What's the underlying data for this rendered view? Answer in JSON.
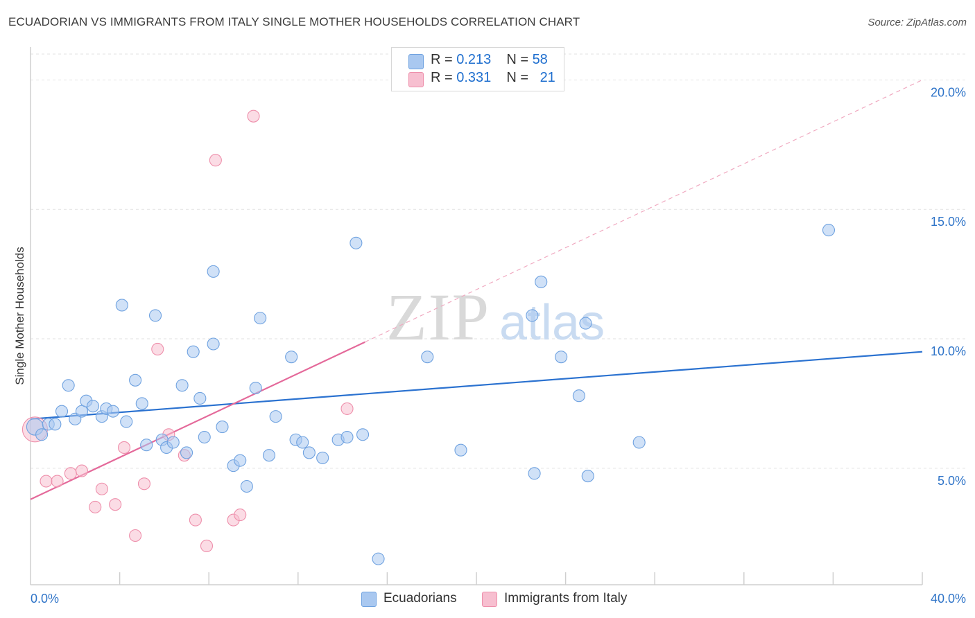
{
  "header": {
    "title": "ECUADORIAN VS IMMIGRANTS FROM ITALY SINGLE MOTHER HOUSEHOLDS CORRELATION CHART",
    "source": "Source: ZipAtlas.com"
  },
  "watermark": {
    "zip": "ZIP",
    "atlas": "atlas"
  },
  "legend_top": {
    "rows": [
      {
        "r_label": "R = ",
        "r_value": "0.213",
        "n_label": "N = ",
        "n_value": "58",
        "color": "#a9c8f0",
        "border": "#6fa2e0"
      },
      {
        "r_label": "R = ",
        "r_value": "0.331",
        "n_label": "N = ",
        "n_value": "21",
        "color": "#f7bfd0",
        "border": "#ee8fab"
      }
    ]
  },
  "legend_bottom": {
    "items": [
      {
        "label": "Ecuadorians",
        "color": "#a9c8f0",
        "border": "#6fa2e0"
      },
      {
        "label": "Immigrants from Italy",
        "color": "#f7bfd0",
        "border": "#ee8fab"
      }
    ]
  },
  "chart_data": {
    "type": "scatter",
    "title": "ECUADORIAN VS IMMIGRANTS FROM ITALY SINGLE MOTHER HOUSEHOLDS CORRELATION CHART",
    "xlabel": "",
    "ylabel": "Single Mother Households",
    "xlim": [
      0,
      40
    ],
    "ylim": [
      0.5,
      21
    ],
    "x_tick_labels": [
      {
        "value": 0,
        "label": "0.0%"
      },
      {
        "value": 40,
        "label": "40.0%"
      }
    ],
    "x_minor_ticks": [
      4,
      8,
      12,
      16,
      20,
      24,
      28,
      32,
      36,
      40
    ],
    "y_ticks": [
      {
        "value": 5,
        "label": "5.0%"
      },
      {
        "value": 10,
        "label": "10.0%"
      },
      {
        "value": 15,
        "label": "15.0%"
      },
      {
        "value": 20,
        "label": "20.0%"
      }
    ],
    "grid": true,
    "series": [
      {
        "name": "Ecuadorians",
        "color": "#a9c8f0",
        "stroke": "#6fa2e0",
        "r": 0.213,
        "n": 58,
        "trend": {
          "x0": 0,
          "y0": 6.9,
          "x1": 40,
          "y1": 9.5,
          "dashed_from": null
        },
        "points": [
          [
            0.2,
            6.6
          ],
          [
            0.5,
            6.3
          ],
          [
            0.8,
            6.7
          ],
          [
            1.1,
            6.7
          ],
          [
            1.4,
            7.2
          ],
          [
            1.7,
            8.2
          ],
          [
            2.0,
            6.9
          ],
          [
            2.3,
            7.2
          ],
          [
            2.5,
            7.6
          ],
          [
            2.8,
            7.4
          ],
          [
            3.2,
            7.0
          ],
          [
            3.4,
            7.3
          ],
          [
            3.7,
            7.2
          ],
          [
            4.1,
            11.3
          ],
          [
            4.3,
            6.8
          ],
          [
            4.7,
            8.4
          ],
          [
            5.0,
            7.5
          ],
          [
            5.2,
            5.9
          ],
          [
            5.6,
            10.9
          ],
          [
            5.9,
            6.1
          ],
          [
            6.1,
            5.8
          ],
          [
            6.4,
            6.0
          ],
          [
            6.8,
            8.2
          ],
          [
            7.0,
            5.6
          ],
          [
            7.3,
            9.5
          ],
          [
            7.6,
            7.7
          ],
          [
            7.8,
            6.2
          ],
          [
            8.2,
            12.6
          ],
          [
            8.2,
            9.8
          ],
          [
            8.6,
            6.6
          ],
          [
            9.1,
            5.1
          ],
          [
            9.4,
            5.3
          ],
          [
            9.7,
            4.3
          ],
          [
            10.1,
            8.1
          ],
          [
            10.3,
            10.8
          ],
          [
            10.7,
            5.5
          ],
          [
            11.0,
            7.0
          ],
          [
            11.7,
            9.3
          ],
          [
            11.9,
            6.1
          ],
          [
            12.2,
            6.0
          ],
          [
            12.5,
            5.6
          ],
          [
            13.1,
            5.4
          ],
          [
            13.8,
            6.1
          ],
          [
            14.2,
            6.2
          ],
          [
            14.6,
            13.7
          ],
          [
            14.9,
            6.3
          ],
          [
            15.6,
            1.5
          ],
          [
            17.8,
            9.3
          ],
          [
            19.3,
            5.7
          ],
          [
            22.5,
            10.9
          ],
          [
            22.6,
            4.8
          ],
          [
            22.9,
            12.2
          ],
          [
            23.8,
            9.3
          ],
          [
            24.6,
            7.8
          ],
          [
            24.9,
            10.6
          ],
          [
            25.0,
            4.7
          ],
          [
            27.3,
            6.0
          ],
          [
            35.8,
            14.2
          ]
        ]
      },
      {
        "name": "Immigrants from Italy",
        "color": "#f7bfd0",
        "stroke": "#ee8fab",
        "r": 0.331,
        "n": 21,
        "trend": {
          "x0": 0,
          "y0": 3.8,
          "x1": 40,
          "y1": 20.0,
          "solid_until": 15.0
        },
        "points": [
          [
            0.2,
            6.5
          ],
          [
            0.7,
            4.5
          ],
          [
            1.2,
            4.5
          ],
          [
            1.8,
            4.8
          ],
          [
            2.3,
            4.9
          ],
          [
            2.9,
            3.5
          ],
          [
            3.2,
            4.2
          ],
          [
            3.8,
            3.6
          ],
          [
            4.2,
            5.8
          ],
          [
            4.7,
            2.4
          ],
          [
            5.1,
            4.4
          ],
          [
            5.7,
            9.6
          ],
          [
            6.2,
            6.3
          ],
          [
            6.9,
            5.5
          ],
          [
            7.4,
            3.0
          ],
          [
            7.9,
            2.0
          ],
          [
            8.3,
            16.9
          ],
          [
            9.1,
            3.0
          ],
          [
            9.4,
            3.2
          ],
          [
            10.0,
            18.6
          ],
          [
            14.2,
            7.3
          ]
        ]
      }
    ]
  }
}
